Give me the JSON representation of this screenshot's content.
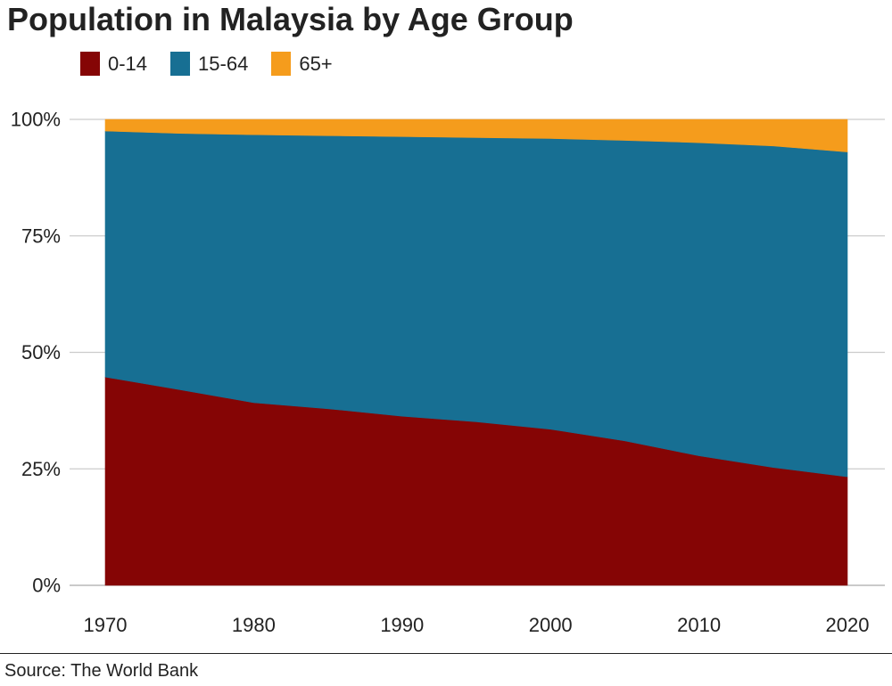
{
  "chart_data": {
    "type": "area",
    "stacked": true,
    "normalized": true,
    "title": "Population in Malaysia by Age Group",
    "source": "Source: The World Bank",
    "x": [
      1970,
      1975,
      1980,
      1985,
      1990,
      1995,
      2000,
      2005,
      2010,
      2015,
      2020
    ],
    "series": [
      {
        "name": "0-14",
        "color": "#850505",
        "values": [
          44.7,
          42.0,
          39.2,
          37.9,
          36.3,
          35.1,
          33.5,
          31.0,
          27.8,
          25.3,
          23.3
        ]
      },
      {
        "name": "15-64",
        "color": "#176f93",
        "values": [
          52.8,
          55.0,
          57.5,
          58.6,
          60.0,
          61.0,
          62.4,
          64.5,
          67.2,
          69.0,
          69.7
        ]
      },
      {
        "name": "65+",
        "color": "#f59c1c",
        "values": [
          2.5,
          3.0,
          3.3,
          3.5,
          3.7,
          3.9,
          4.1,
          4.5,
          5.0,
          5.7,
          7.0
        ]
      }
    ],
    "x_ticks": [
      {
        "value": 1970,
        "label": "1970"
      },
      {
        "value": 1980,
        "label": "1980"
      },
      {
        "value": 1990,
        "label": "1990"
      },
      {
        "value": 2000,
        "label": "2000"
      },
      {
        "value": 2010,
        "label": "2010"
      },
      {
        "value": 2020,
        "label": "2020"
      }
    ],
    "y_ticks": [
      {
        "value": 0,
        "label": "0%"
      },
      {
        "value": 25,
        "label": "25%"
      },
      {
        "value": 50,
        "label": "50%"
      },
      {
        "value": 75,
        "label": "75%"
      },
      {
        "value": 100,
        "label": "100%"
      }
    ],
    "xlim": [
      1970,
      2020
    ],
    "ylim": [
      0,
      100
    ],
    "grid": "horizontal",
    "legend_position": "top-left",
    "xlabel": "",
    "ylabel": ""
  }
}
